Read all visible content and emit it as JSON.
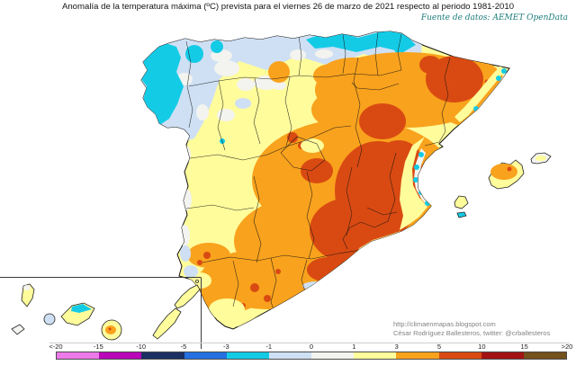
{
  "title": "Anomalía de la temperatura máxima (ºC) prevista para el viernes 26 de marzo de 2021 respecto al periodo 1981-2010",
  "source_note": "Fuente de datos: AEMET OpenData",
  "credits": {
    "url": "http://climaenmapas.blogspot.com",
    "author": "César Rodríguez Ballesteros, twitter: @crballesteros"
  },
  "legend": {
    "tick_labels": [
      "<-20",
      "-15",
      "-10",
      "-5",
      "-3",
      "-1",
      "0",
      "1",
      "3",
      "5",
      "10",
      "15",
      ">20"
    ],
    "segment_order": [
      "violet",
      "magenta",
      "navy",
      "blue",
      "cyan",
      "paleblue",
      "white",
      "yellow",
      "orange",
      "red",
      "darkred",
      "brown"
    ]
  },
  "map": {
    "palette": {
      "violet": "#ec7ae8",
      "magenta": "#b806b8",
      "navy": "#1b2f61",
      "blue": "#2470e2",
      "cyan": "#14cbe6",
      "paleblue": "#cfe0f4",
      "white": "#f3f3ef",
      "yellow": "#fffc9c",
      "orange": "#f9a21d",
      "red": "#d94a12",
      "darkred": "#a41313",
      "brown": "#74511d"
    }
  }
}
